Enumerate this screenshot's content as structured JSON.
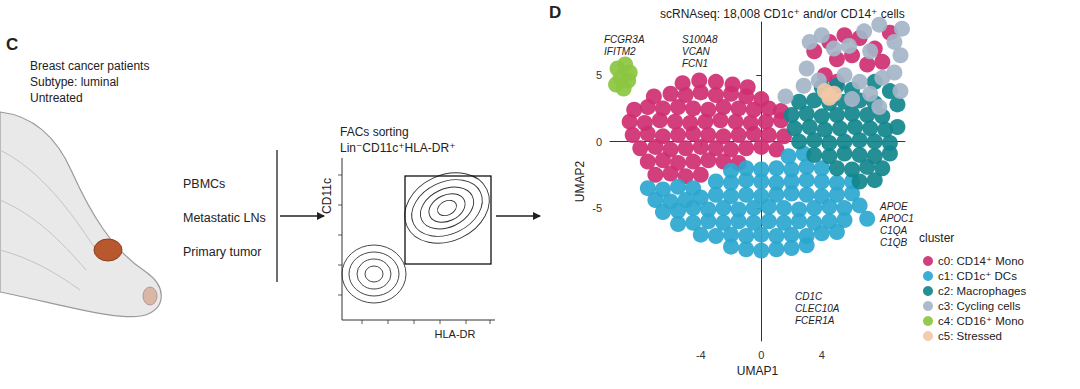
{
  "panel_c": {
    "label": "C",
    "patient_text": [
      "Breast cancer patients",
      "Subtype: luminal",
      "Untreated"
    ],
    "samples": [
      "PBMCs",
      "Metastatic LNs",
      "Primary tumor"
    ],
    "facs_title": "FACs sorting",
    "facs_gate": "Lin⁻CD11c⁺HLA-DR⁺",
    "facs_y_label": "CD11c",
    "facs_x_label": "HLA-DR"
  },
  "chart_data": {
    "type": "scatter",
    "panel_label": "D",
    "title": "scRNAseq: 18,008 CD1c⁺ and/or CD14⁺ cells",
    "x_label": "UMAP1",
    "y_label": "UMAP2",
    "xlim": [
      -10,
      9.5
    ],
    "xticks": [
      -4,
      0,
      4
    ],
    "ylim": [
      -15,
      9
    ],
    "yticks": [
      -5,
      0,
      5
    ],
    "grid": false,
    "legend": "right",
    "legend_title": "cluster",
    "annotations": [
      {
        "lines": [
          "FCGR3A",
          "IFITM2"
        ]
      },
      {
        "lines": [
          "S100A8",
          "VCAN",
          "FCN1"
        ]
      },
      {
        "lines": [
          "APOE",
          "APOC1",
          "C1QA",
          "C1QB"
        ]
      },
      {
        "lines": [
          "CD1C",
          "CLEC10A",
          "FCER1A"
        ]
      }
    ],
    "series": [
      {
        "name": "c0: CD14⁺ Mono",
        "color": "#cf2f72",
        "x": [
          -5.2,
          -4.1,
          -3,
          -1.9,
          -0.9,
          -7.1,
          -6,
          -5,
          -4,
          -3,
          -2,
          -1,
          0,
          -8.4,
          -7.5,
          -6.5,
          -5.5,
          -4.5,
          -3.5,
          -2.5,
          -1.5,
          -0.5,
          0.5,
          1.3,
          -8.7,
          -7.7,
          -6.7,
          -5.7,
          -4.7,
          -3.7,
          -2.7,
          -1.7,
          -0.7,
          0.3,
          1.3,
          -8.5,
          -7.5,
          -6.5,
          -5.5,
          -4.5,
          -3.5,
          -2.5,
          -1.5,
          -0.5,
          0.5,
          1.5,
          -8,
          -7,
          -6,
          -5,
          -4,
          -3,
          -2,
          -1,
          0,
          1,
          -7.5,
          -6.5,
          -5.5,
          -4.5,
          -3.5,
          -2.5,
          -1.5,
          -7,
          -6,
          -5,
          -4,
          4.5,
          5.5,
          6.5,
          7.5,
          5,
          6,
          7,
          8,
          4.2,
          5,
          8.5,
          3.5
        ],
        "y": [
          4.4,
          4.6,
          4.5,
          4.3,
          4.1,
          3.4,
          3.6,
          3.5,
          3.7,
          3.5,
          3.6,
          3.4,
          3.2,
          2.4,
          2.6,
          2.5,
          2.6,
          2.5,
          2.4,
          2.6,
          2.5,
          2.4,
          2.5,
          2.3,
          1.5,
          1.4,
          1.6,
          1.5,
          1.4,
          1.5,
          1.6,
          1.5,
          1.4,
          1.5,
          1.6,
          0.5,
          0.6,
          0.4,
          0.5,
          0.6,
          0.5,
          0.4,
          0.5,
          0.6,
          0.5,
          0.4,
          -0.5,
          -0.4,
          -0.6,
          -0.5,
          -0.4,
          -0.5,
          -0.6,
          -0.5,
          -0.4,
          -0.6,
          -1.5,
          -1.4,
          -1.6,
          -1.5,
          -1.4,
          -1.5,
          -1.6,
          -2.5,
          -2.4,
          -2.6,
          -2.5,
          7.5,
          8,
          7.8,
          7,
          6.2,
          6.5,
          5.8,
          6,
          5,
          4.5,
          8.2,
          6.8
        ]
      },
      {
        "name": "c1: CD1c⁺ DCs",
        "color": "#2ba6cf",
        "x": [
          1.8,
          2.8,
          -2,
          -1,
          0,
          1,
          2,
          3,
          4,
          -3,
          -2,
          -1,
          0,
          1,
          2,
          3,
          4,
          5,
          6,
          -7.5,
          -6.5,
          -5.5,
          -4.5,
          -7,
          -6,
          -5,
          -4,
          -3,
          -2,
          -1,
          0,
          1,
          2,
          3,
          4,
          5,
          6,
          -6.5,
          -5.5,
          -4.5,
          -3.5,
          -2.5,
          -1.5,
          -0.5,
          0.5,
          1.5,
          2.5,
          3.5,
          4.5,
          5.5,
          6.5,
          -5.5,
          -4.5,
          -3.5,
          -2.5,
          -1.5,
          -0.5,
          0.5,
          1.5,
          2.5,
          3.5,
          4.5,
          5.5,
          7,
          -4,
          -3,
          -2,
          -1,
          0,
          1,
          2,
          3,
          4,
          5,
          -2,
          -1,
          0,
          1,
          2,
          3
        ],
        "y": [
          -1.1,
          -0.9,
          -2.2,
          -2,
          -2.1,
          -2,
          -2.1,
          -1.9,
          -2,
          -3,
          -3.1,
          -2.9,
          -3,
          -3.1,
          -3,
          -2.9,
          -3,
          -3.1,
          -3,
          -3.5,
          -3.6,
          -3.4,
          -3.5,
          -4.4,
          -4.5,
          -4.4,
          -4.2,
          -4,
          -4.1,
          -4,
          -4.1,
          -4,
          -3.9,
          -4,
          -4.1,
          -4,
          -3.9,
          -5.3,
          -5.2,
          -5,
          -5.1,
          -5,
          -5.1,
          -5,
          -4.9,
          -5,
          -5.1,
          -5,
          -4.9,
          -5,
          -4.8,
          -6.2,
          -6.1,
          -6,
          -6.1,
          -6,
          -6.1,
          -6,
          -6.1,
          -6,
          -6.1,
          -6,
          -5.9,
          -5.8,
          -7,
          -7.1,
          -7,
          -7.1,
          -7,
          -7.1,
          -7,
          -7.1,
          -6.9,
          -6.8,
          -7.9,
          -8.1,
          -8.2,
          -8.1,
          -8,
          -7.8
        ]
      },
      {
        "name": "c2: Macrophages",
        "color": "#12868d",
        "x": [
          4,
          5,
          6,
          2.5,
          3.5,
          4.5,
          5.5,
          6.5,
          7.5,
          2,
          3,
          4,
          5,
          6,
          7,
          8,
          2.2,
          3.2,
          4.2,
          5.2,
          6.2,
          7.2,
          8.2,
          9,
          2.5,
          3.5,
          4.5,
          5.5,
          6.5,
          7.5,
          8.5,
          3.5,
          4.5,
          5.5,
          6.5,
          7.5,
          8.5,
          5,
          6,
          7,
          8,
          6.5,
          7.5,
          7.5,
          8.5,
          9
        ],
        "y": [
          4.1,
          4.2,
          3.9,
          3,
          3.1,
          2.9,
          3,
          3.1,
          2.9,
          2,
          2.1,
          1.9,
          2,
          2.1,
          2,
          1.9,
          1,
          1.1,
          0.9,
          1,
          1.1,
          1,
          0.9,
          1.1,
          0,
          0.1,
          -0.1,
          0,
          0.1,
          0,
          -0.1,
          -1,
          -1.1,
          -0.9,
          -1,
          -1.1,
          -0.9,
          -2,
          -2.1,
          -1.9,
          -2,
          -3,
          -2.9,
          4.5,
          3.8,
          2.8
        ]
      },
      {
        "name": "c3: Cycling cells",
        "color": "#a4b5c8",
        "x": [
          3,
          3.8,
          4.5,
          5.5,
          6.5,
          7.2,
          8,
          8.8,
          9.2,
          8.8,
          9.3,
          7.8,
          6.8,
          5.8,
          4.8,
          4,
          3.2,
          6,
          7.8,
          9.2,
          2.8,
          7.2,
          1.6
        ],
        "y": [
          5.5,
          4.6,
          3.5,
          5,
          4.5,
          3.6,
          4.8,
          5.2,
          6.5,
          7.5,
          8.5,
          8.8,
          8.3,
          7.2,
          7,
          8,
          7.5,
          3.2,
          2.6,
          3.8,
          4.2,
          6.8,
          3.4
        ]
      },
      {
        "name": "c4: CD16⁺ Mono",
        "color": "#8cc641",
        "x": [
          -9.5,
          -9,
          -9.3,
          -8.8,
          -9.6,
          -9.1,
          -8.7
        ],
        "y": [
          5.5,
          5.8,
          4.8,
          4.6,
          4.3,
          4,
          5.2
        ]
      },
      {
        "name": "c5: Stressed",
        "color": "#f2c8a6",
        "x": [
          4.2,
          4.5,
          4.8
        ],
        "y": [
          3.8,
          3.3,
          3.6
        ]
      }
    ]
  }
}
